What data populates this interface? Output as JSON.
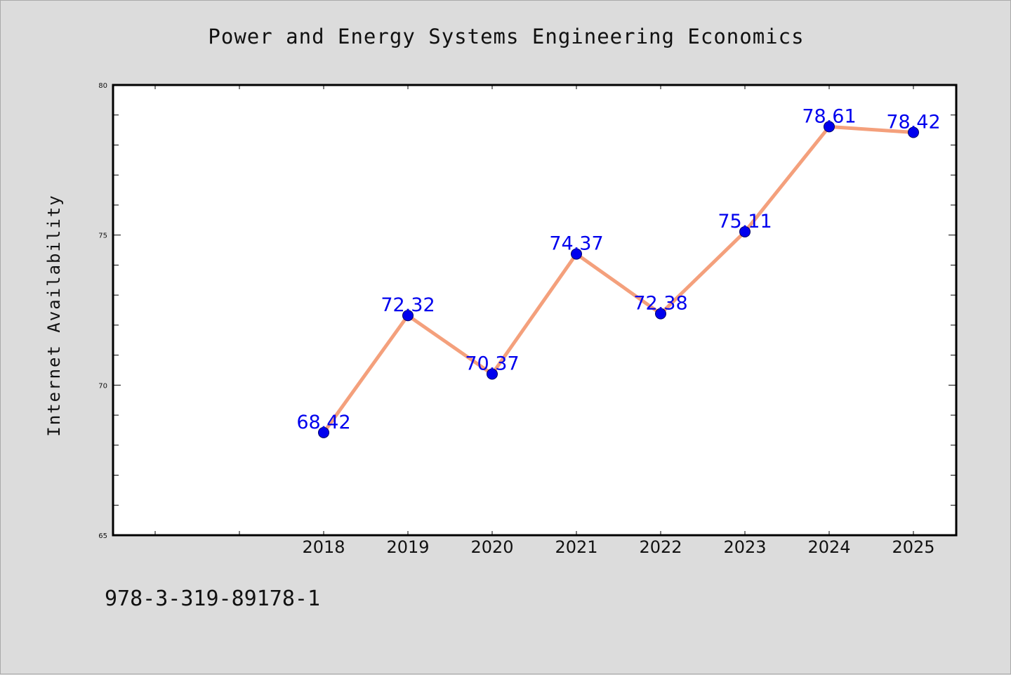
{
  "colors": {
    "background": "#dcdcdc",
    "plot_background": "#ffffff",
    "line": "#f4a07c",
    "marker": "#0000ee",
    "marker_edge": "#000066",
    "data_label": "#0000ee"
  },
  "caption": "978-3-319-89178-1",
  "chart_data": {
    "type": "line",
    "title": "Power and Energy Systems Engineering Economics",
    "xlabel": "",
    "ylabel": "Internet Availability",
    "x_axis_slots": 10,
    "categories": [
      "2018",
      "2019",
      "2020",
      "2021",
      "2022",
      "2023",
      "2024",
      "2025"
    ],
    "category_slot_start": 2,
    "values": [
      68.42,
      72.32,
      70.37,
      74.37,
      72.38,
      75.11,
      78.61,
      78.42
    ],
    "data_labels": [
      "68.42",
      "72.32",
      "70.37",
      "74.37",
      "72.38",
      "75.11",
      "78.61",
      "78.42"
    ],
    "ylim": [
      65,
      80
    ],
    "y_major_ticks": [
      65,
      70,
      75,
      80
    ],
    "y_minor_step": 1,
    "y_tick_labels": [
      "65",
      "70",
      "75",
      "80"
    ],
    "grid": false,
    "legend": "none"
  }
}
